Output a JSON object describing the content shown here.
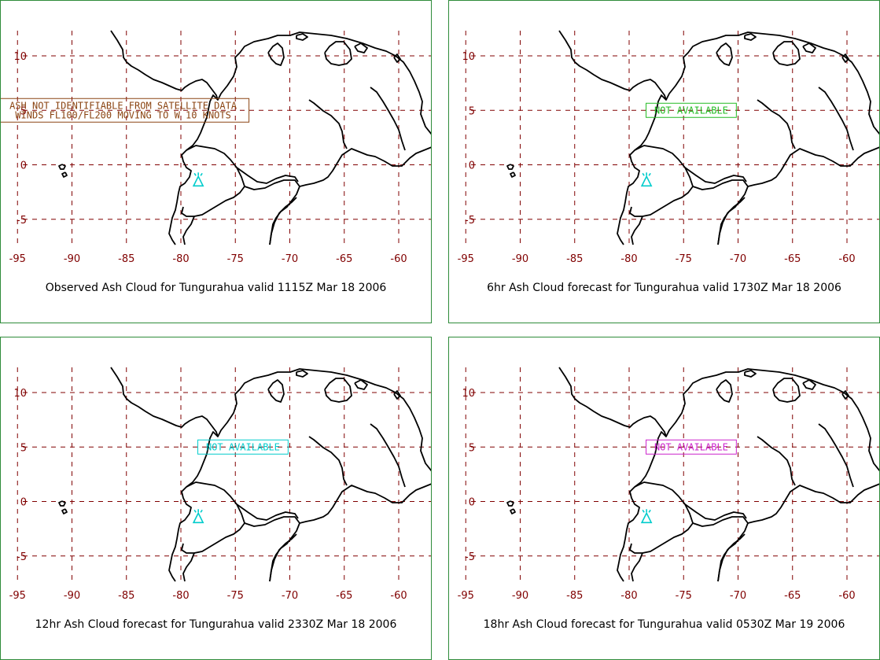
{
  "colors": {
    "grid": "#800000",
    "tick": "#800000",
    "coast": "#000000",
    "volcano": "#00cccc",
    "frame": "#2e8b3a"
  },
  "axis": {
    "x_ticks": [
      -95,
      -90,
      -85,
      -80,
      -75,
      -70,
      -65,
      -60
    ],
    "y_ticks": [
      10,
      5,
      0,
      -5
    ],
    "x_labels": [
      "-95",
      "-90",
      "-85",
      "-80",
      "-75",
      "-70",
      "-65",
      "-60"
    ],
    "y_labels": [
      "10",
      "5",
      "0",
      "-5"
    ]
  },
  "volcano": {
    "name": "Tungurahua",
    "lon": -78.4,
    "lat": -1.5,
    "icon": "volcano-icon"
  },
  "panels": [
    {
      "caption": "Observed Ash Cloud for Tungurahua valid 1115Z Mar 18 2006",
      "advisory_lines": [
        "ASH NOT IDENTIFIABLE FROM SATELLITE DATA",
        "WINDS FL100/FL200 MOVING TO W 10 KNOTS"
      ],
      "advisory_color": "#8b4513",
      "advisory_center": {
        "lon": -85.3,
        "lat": 5
      }
    },
    {
      "caption": "6hr Ash Cloud forecast for Tungurahua valid 1730Z Mar 18 2006",
      "advisory_lines": [
        "NOT AVAILABLE"
      ],
      "advisory_color": "#22bb22",
      "advisory_center": {
        "lon": -74.3,
        "lat": 5
      }
    },
    {
      "caption": "12hr Ash Cloud forecast for Tungurahua valid 2330Z Mar 18 2006",
      "advisory_lines": [
        "NOT AVAILABLE"
      ],
      "advisory_color": "#00cccc",
      "advisory_center": {
        "lon": -74.3,
        "lat": 5
      }
    },
    {
      "caption": "18hr Ash Cloud forecast for Tungurahua valid 0530Z Mar 19 2006",
      "advisory_lines": [
        "NOT AVAILABLE"
      ],
      "advisory_color": "#cc22cc",
      "advisory_center": {
        "lon": -74.3,
        "lat": 5
      }
    }
  ]
}
